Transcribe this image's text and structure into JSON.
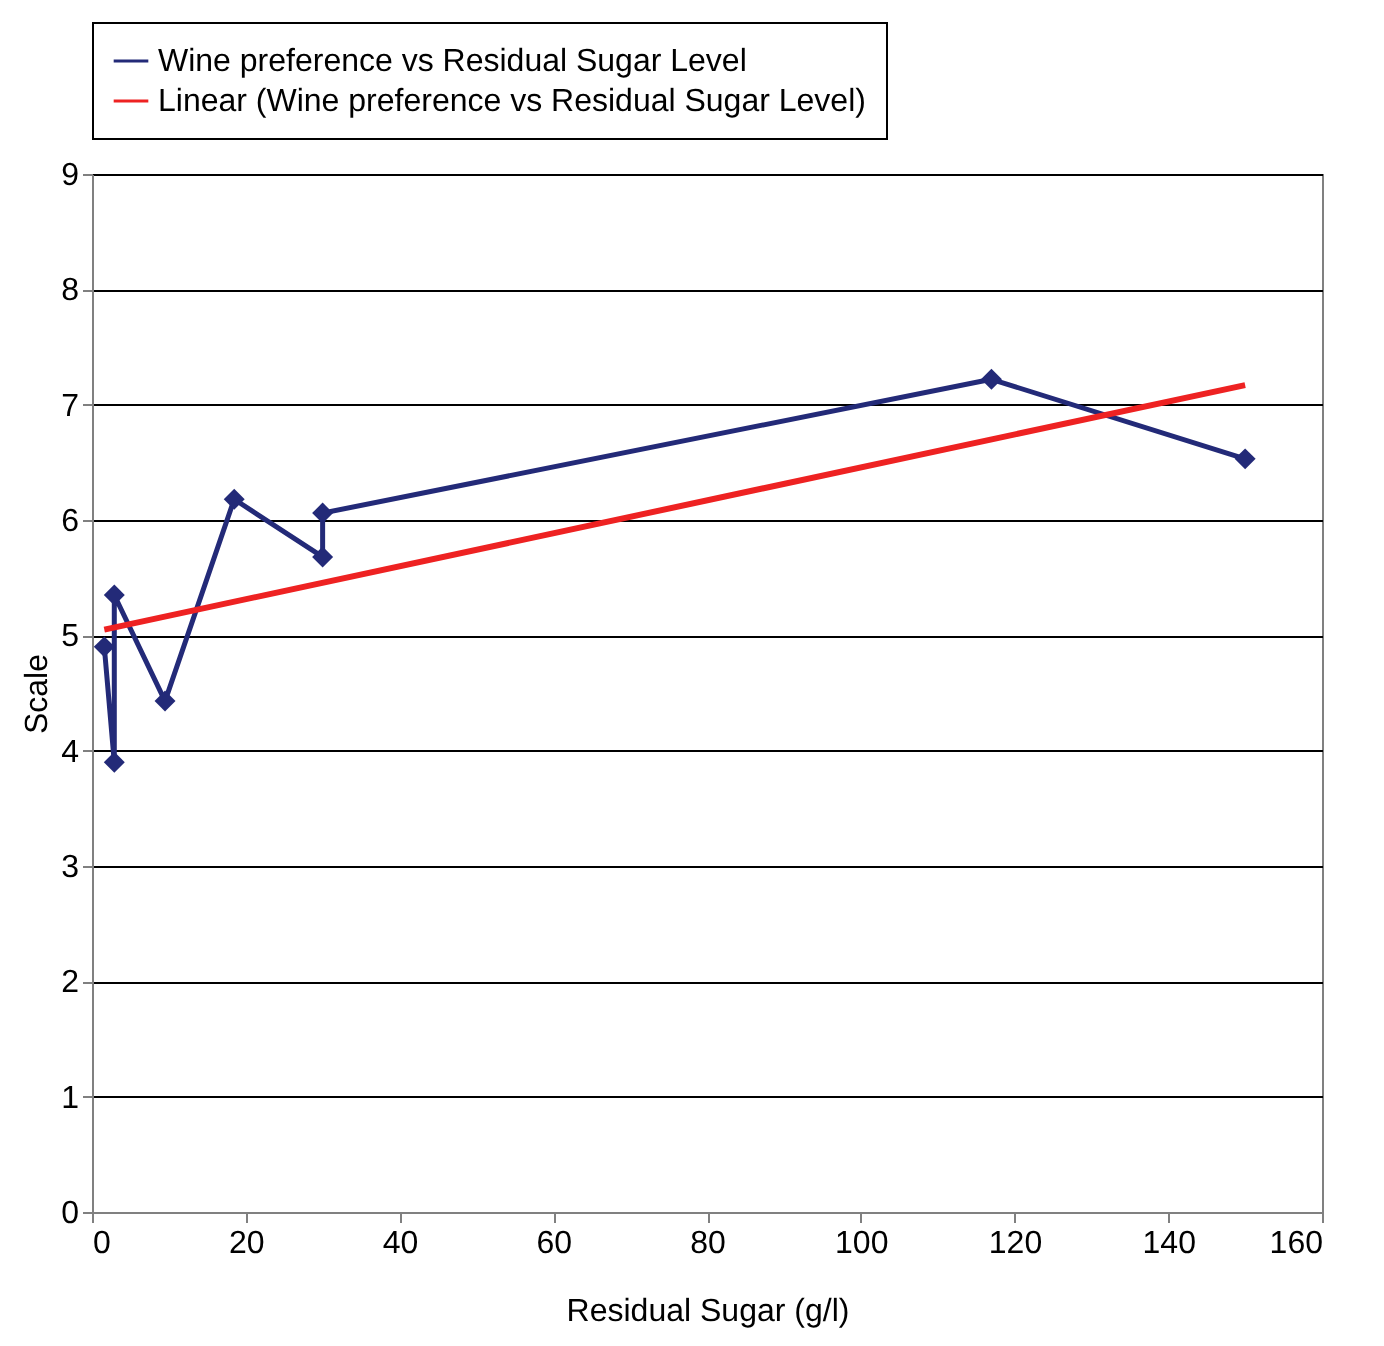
{
  "chart_data": {
    "type": "line",
    "xlabel": "Residual Sugar (g/l)",
    "ylabel": "Scale",
    "xlim": [
      0,
      160
    ],
    "xticks": [
      0,
      20,
      40,
      60,
      80,
      100,
      120,
      140,
      160
    ],
    "ylim": [
      0,
      9
    ],
    "yticks": [
      0,
      1,
      2,
      3,
      4,
      5,
      6,
      7,
      8,
      9
    ],
    "grid": "y",
    "legend": "top",
    "marker": "diamond",
    "line_style": "solid",
    "series": [
      {
        "name": "Wine preference vs Residual Sugar Level",
        "color": "#232a78",
        "x": [
          1.6,
          2.9,
          2.9,
          9.5,
          18.5,
          30,
          30,
          117,
          150
        ],
        "values": [
          4.9,
          3.9,
          5.35,
          4.43,
          6.18,
          5.68,
          6.06,
          7.22,
          6.53
        ]
      },
      {
        "name": "Linear (Wine preference vs Residual Sugar Level)",
        "color": "#ee2222",
        "marker": "none",
        "x": [
          1.6,
          150
        ],
        "values": [
          5.05,
          7.17
        ]
      }
    ]
  }
}
